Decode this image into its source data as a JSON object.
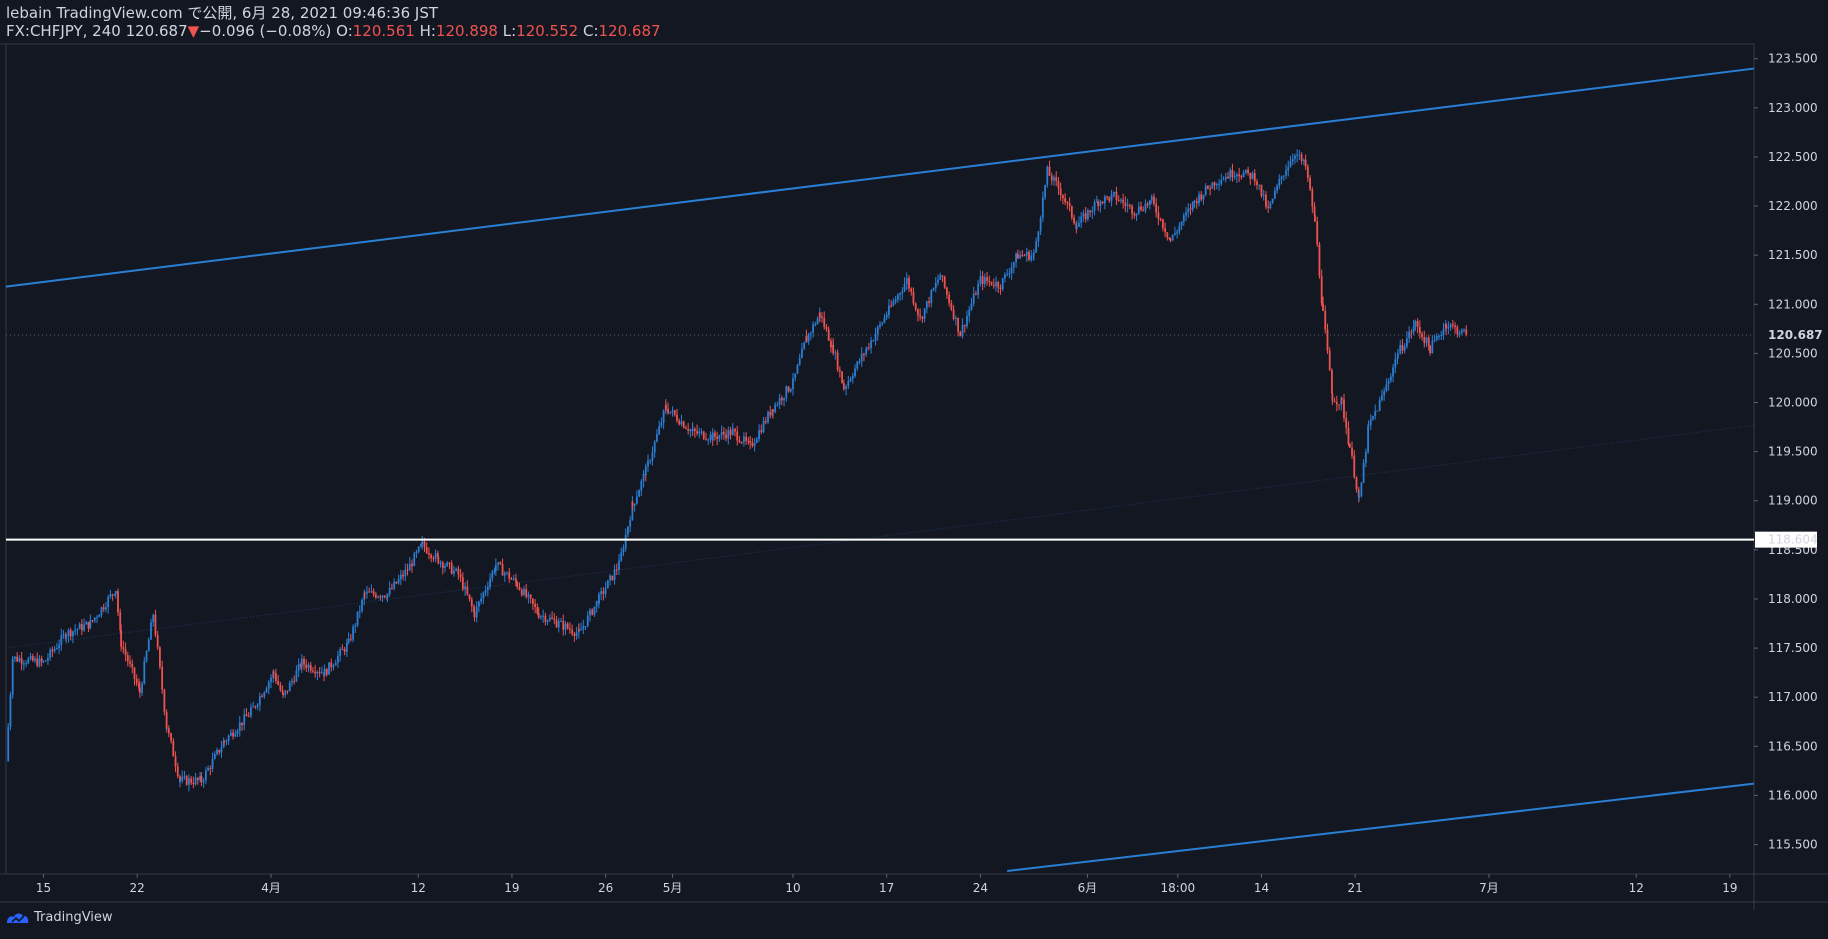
{
  "header": {
    "line1": "lebain TradingView.com で公開, 6月 28, 2021 09:46:36 JST",
    "symbol": "FX:CHFJPY, 240",
    "last": "120.687",
    "change_arrow": "▼",
    "change": "−0.096 (−0.08%)",
    "o_label": "O:",
    "o_val": "120.561",
    "h_label": "H:",
    "h_val": "120.898",
    "l_label": "L:",
    "l_val": "120.552",
    "c_label": "C:",
    "c_val": "120.687"
  },
  "footer": {
    "brand": "TradingView",
    "logo_icon": "tradingview-logo-icon"
  },
  "colors": {
    "bg": "#131722",
    "up": "#2a7fd4",
    "down": "#ef5350",
    "channel": "#2a7fd4",
    "hline": "#ffffff",
    "grid": "#2a2e39"
  },
  "chart_data": {
    "type": "candlestick",
    "title": "",
    "ylim": [
      115.2,
      123.65
    ],
    "y_ticks": [
      "115.500",
      "116.000",
      "116.500",
      "117.000",
      "117.500",
      "118.000",
      "118.500",
      "119.000",
      "119.500",
      "120.000",
      "120.500",
      "121.000",
      "121.500",
      "122.000",
      "122.500",
      "123.000",
      "123.500"
    ],
    "y_tick_values": [
      115.5,
      116.0,
      116.5,
      117.0,
      117.5,
      118.0,
      118.5,
      119.0,
      119.5,
      120.0,
      120.5,
      121.0,
      121.5,
      122.0,
      122.5,
      123.0,
      123.5
    ],
    "x_ticks": [
      {
        "label": "15",
        "day": 0
      },
      {
        "label": "22",
        "day": 7
      },
      {
        "label": "4月",
        "day": 17
      },
      {
        "label": "12",
        "day": 28
      },
      {
        "label": "19",
        "day": 35
      },
      {
        "label": "26",
        "day": 42
      },
      {
        "label": "5月",
        "day": 47
      },
      {
        "label": "10",
        "day": 56
      },
      {
        "label": "17",
        "day": 63
      },
      {
        "label": "24",
        "day": 70
      },
      {
        "label": "6月",
        "day": 78
      },
      {
        "label": "18:00",
        "day": 84.75
      },
      {
        "label": "14",
        "day": 91
      },
      {
        "label": "21",
        "day": 98
      },
      {
        "label": "7月",
        "day": 108
      },
      {
        "label": "12",
        "day": 119
      },
      {
        "label": "19",
        "day": 126
      }
    ],
    "xlim_days": [
      -2.8,
      127.8
    ],
    "last_price": 120.687,
    "last_price_label": "120.687",
    "horizontal_line": {
      "value": 118.604,
      "label": "118.604"
    },
    "channel_upper": [
      {
        "day": -2.8,
        "price": 121.18
      },
      {
        "day": 127.8,
        "price": 123.4
      }
    ],
    "channel_lower": [
      {
        "day": 72,
        "price": 115.23
      },
      {
        "day": 127.8,
        "price": 116.12
      }
    ],
    "channel_mid": [
      {
        "day": -2.8,
        "price": 117.5
      },
      {
        "day": 127.8,
        "price": 119.77
      }
    ],
    "anchors": [
      {
        "day": -2.8,
        "price": 116.35
      },
      {
        "day": -2.3,
        "price": 117.4
      },
      {
        "day": 0,
        "price": 117.35
      },
      {
        "day": 1.7,
        "price": 117.65
      },
      {
        "day": 3.5,
        "price": 117.75
      },
      {
        "day": 5.4,
        "price": 118.1
      },
      {
        "day": 5.8,
        "price": 117.55
      },
      {
        "day": 7.2,
        "price": 117.05
      },
      {
        "day": 8.2,
        "price": 117.85
      },
      {
        "day": 9.2,
        "price": 116.7
      },
      {
        "day": 10.2,
        "price": 116.15
      },
      {
        "day": 11.8,
        "price": 116.15
      },
      {
        "day": 13.5,
        "price": 116.55
      },
      {
        "day": 15.5,
        "price": 116.85
      },
      {
        "day": 17.2,
        "price": 117.25
      },
      {
        "day": 17.9,
        "price": 117.0
      },
      {
        "day": 19.3,
        "price": 117.35
      },
      {
        "day": 21.0,
        "price": 117.25
      },
      {
        "day": 22.8,
        "price": 117.55
      },
      {
        "day": 24.0,
        "price": 118.05
      },
      {
        "day": 25.7,
        "price": 118.05
      },
      {
        "day": 27.2,
        "price": 118.3
      },
      {
        "day": 28.3,
        "price": 118.55
      },
      {
        "day": 29.5,
        "price": 118.4
      },
      {
        "day": 31.0,
        "price": 118.25
      },
      {
        "day": 32.2,
        "price": 117.85
      },
      {
        "day": 33.8,
        "price": 118.35
      },
      {
        "day": 35.4,
        "price": 118.15
      },
      {
        "day": 37.0,
        "price": 117.85
      },
      {
        "day": 38.5,
        "price": 117.75
      },
      {
        "day": 40.0,
        "price": 117.65
      },
      {
        "day": 41.5,
        "price": 118.0
      },
      {
        "day": 43.0,
        "price": 118.35
      },
      {
        "day": 44.0,
        "price": 118.95
      },
      {
        "day": 45.0,
        "price": 119.3
      },
      {
        "day": 46.5,
        "price": 119.95
      },
      {
        "day": 48.5,
        "price": 119.7
      },
      {
        "day": 50.0,
        "price": 119.65
      },
      {
        "day": 51.5,
        "price": 119.7
      },
      {
        "day": 52.8,
        "price": 119.55
      },
      {
        "day": 54.5,
        "price": 119.95
      },
      {
        "day": 56.0,
        "price": 120.2
      },
      {
        "day": 57.0,
        "price": 120.65
      },
      {
        "day": 58.0,
        "price": 120.9
      },
      {
        "day": 59.0,
        "price": 120.55
      },
      {
        "day": 59.8,
        "price": 120.15
      },
      {
        "day": 61.5,
        "price": 120.55
      },
      {
        "day": 63.0,
        "price": 120.9
      },
      {
        "day": 64.5,
        "price": 121.25
      },
      {
        "day": 65.5,
        "price": 120.85
      },
      {
        "day": 67.0,
        "price": 121.3
      },
      {
        "day": 68.5,
        "price": 120.7
      },
      {
        "day": 70.0,
        "price": 121.25
      },
      {
        "day": 71.5,
        "price": 121.2
      },
      {
        "day": 72.8,
        "price": 121.5
      },
      {
        "day": 74.0,
        "price": 121.5
      },
      {
        "day": 75.0,
        "price": 122.35
      },
      {
        "day": 76.0,
        "price": 122.15
      },
      {
        "day": 77.2,
        "price": 121.8
      },
      {
        "day": 78.8,
        "price": 122.05
      },
      {
        "day": 80.0,
        "price": 122.1
      },
      {
        "day": 81.5,
        "price": 121.95
      },
      {
        "day": 82.8,
        "price": 122.05
      },
      {
        "day": 84.2,
        "price": 121.65
      },
      {
        "day": 86.0,
        "price": 122.05
      },
      {
        "day": 87.5,
        "price": 122.25
      },
      {
        "day": 89.0,
        "price": 122.35
      },
      {
        "day": 90.5,
        "price": 122.3
      },
      {
        "day": 91.5,
        "price": 121.95
      },
      {
        "day": 92.5,
        "price": 122.3
      },
      {
        "day": 93.5,
        "price": 122.55
      },
      {
        "day": 94.3,
        "price": 122.4
      },
      {
        "day": 95.0,
        "price": 121.85
      },
      {
        "day": 95.6,
        "price": 120.9
      },
      {
        "day": 96.3,
        "price": 120.05
      },
      {
        "day": 97.0,
        "price": 120.0
      },
      {
        "day": 97.6,
        "price": 119.55
      },
      {
        "day": 98.3,
        "price": 119.0
      },
      {
        "day": 99.0,
        "price": 119.75
      },
      {
        "day": 100.0,
        "price": 120.05
      },
      {
        "day": 101.2,
        "price": 120.5
      },
      {
        "day": 102.5,
        "price": 120.8
      },
      {
        "day": 103.6,
        "price": 120.55
      },
      {
        "day": 104.8,
        "price": 120.8
      },
      {
        "day": 106.3,
        "price": 120.69
      }
    ]
  }
}
